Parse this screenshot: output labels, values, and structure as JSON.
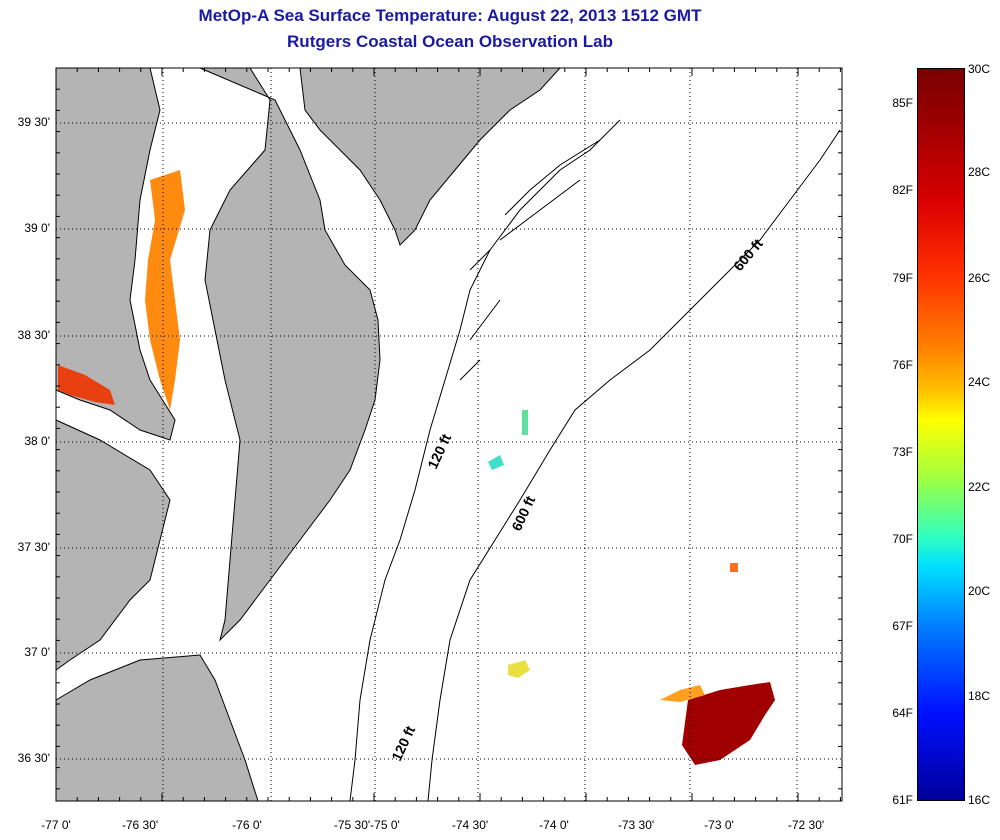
{
  "title": "MetOp-A Sea Surface Temperature:  August 22, 2013 1512 GMT",
  "subtitle": "Rutgers Coastal Ocean Observation Lab",
  "lat_labels": [
    "39 30'",
    "39 0'",
    "38 30'",
    "38 0'",
    "37 30'",
    "37 0'",
    "36 30'"
  ],
  "lon_labels": [
    "-77 0'",
    "-76 30'",
    "-76 0'",
    "-75 30'",
    "-75 0'",
    "-74 30'",
    "-74 0'",
    "-73 30'",
    "-73 0'",
    "-72 30'"
  ],
  "contours": {
    "label_120_north": "120 ft",
    "label_120_south": "120 ft",
    "label_600_north": "600 ft",
    "label_600_mid": "600 ft"
  },
  "colorbar": {
    "fahrenheit": [
      "85F",
      "82F",
      "79F",
      "76F",
      "73F",
      "70F",
      "67F",
      "64F",
      "61F"
    ],
    "celsius": [
      "30C",
      "28C",
      "26C",
      "24C",
      "22C",
      "20C",
      "18C",
      "16C"
    ],
    "min_c": 16,
    "max_c": 30
  },
  "colors": {
    "title": "#1a1aa6",
    "land": "#b4b4b4",
    "water": "#ffffff",
    "warm": "#a00000"
  }
}
